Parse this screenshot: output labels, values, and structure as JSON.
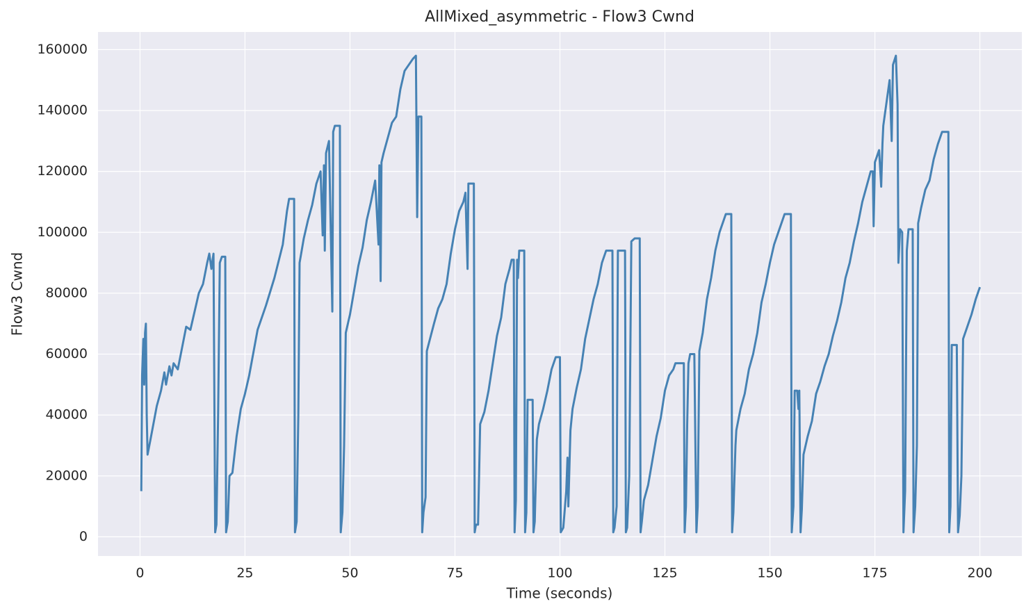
{
  "chart_data": {
    "type": "line",
    "title": "AllMixed_asymmetric - Flow3 Cwnd",
    "xlabel": "Time (seconds)",
    "ylabel": "Flow3 Cwnd",
    "color": "#4682b4",
    "grid": true,
    "xlim": [
      -10,
      210
    ],
    "xticks": [
      0,
      25,
      50,
      75,
      100,
      125,
      150,
      175,
      200
    ],
    "ylim": [
      -6300,
      165800
    ],
    "yticks": [
      0,
      20000,
      40000,
      60000,
      80000,
      100000,
      120000,
      140000,
      160000
    ],
    "x": [
      0.3,
      0.5,
      0.8,
      1.0,
      1.2,
      1.4,
      1.6,
      1.8,
      2.5,
      4,
      5,
      5.8,
      6.2,
      7,
      7.5,
      8,
      9,
      10,
      11,
      12,
      14,
      15,
      16,
      16.5,
      17,
      17.5,
      17.9,
      18.2,
      18.6,
      19,
      19.5,
      20.3,
      20.5,
      20.9,
      21.3,
      22,
      23,
      24,
      25,
      26,
      28,
      30,
      32,
      34,
      35,
      35.5,
      36.7,
      36.9,
      37.3,
      37.7,
      38,
      39,
      40,
      41,
      42,
      43,
      43.5,
      43.8,
      44,
      44.3,
      45,
      45.8,
      46,
      46.4,
      47.6,
      47.8,
      48.2,
      48.6,
      49,
      50,
      51,
      52,
      53,
      54,
      55,
      56,
      56.8,
      57,
      57.3,
      57.5,
      58,
      60,
      61,
      62,
      63,
      64,
      65,
      65.7,
      66,
      66.3,
      67,
      67.2,
      67.5,
      68,
      68.3,
      70,
      71,
      72,
      73,
      74,
      75,
      76,
      77,
      77.5,
      78,
      78.2,
      79.5,
      79.7,
      80,
      80.5,
      81,
      82,
      83,
      84,
      85,
      86,
      87,
      88,
      88.5,
      89,
      89.2,
      89.5,
      89.8,
      90,
      90.3,
      91.5,
      91.7,
      92,
      92.3,
      93.5,
      93.7,
      94,
      94.5,
      95,
      96,
      97,
      98,
      99,
      100,
      100.2,
      100.8,
      101.5,
      101.8,
      102,
      102.5,
      103,
      104,
      105,
      106,
      108,
      109,
      110,
      111,
      112.5,
      112.7,
      113,
      113.5,
      113.8,
      115.5,
      115.7,
      116,
      116.5,
      117,
      117.8,
      119,
      119.2,
      119.5,
      120,
      121,
      122,
      123,
      124,
      125,
      126,
      127,
      127.5,
      129.5,
      129.7,
      130,
      130.3,
      130.6,
      131,
      132,
      132.5,
      132.8,
      133.2,
      134,
      135,
      136,
      137,
      138,
      139,
      139.5,
      140.8,
      141,
      141.3,
      141.8,
      142,
      143,
      144,
      145,
      146,
      147,
      148,
      149,
      150,
      151,
      152,
      153,
      153.5,
      155,
      155.2,
      155.6,
      155.9,
      156.5,
      156.8,
      157,
      157.3,
      157.6,
      158,
      159,
      160,
      161,
      162,
      163,
      164,
      165,
      166,
      167,
      168,
      169,
      170,
      171,
      172,
      173,
      174,
      174.5,
      174.7,
      175,
      176,
      176.5,
      176.8,
      177,
      178,
      178.5,
      179,
      179.3,
      180,
      180.4,
      180.6,
      181,
      181.5,
      181.8,
      182.2,
      182.6,
      183,
      184,
      184.2,
      184.6,
      185,
      185.3,
      186,
      187,
      188,
      189,
      190,
      191,
      192.5,
      192.7,
      193,
      193.3,
      194.5,
      194.8,
      195.2,
      195.6,
      196,
      197,
      198,
      199,
      200
    ],
    "values": [
      15000,
      53000,
      65000,
      50000,
      67000,
      70000,
      40000,
      27000,
      32000,
      43000,
      48000,
      54000,
      50000,
      56000,
      53000,
      57000,
      55000,
      62000,
      69000,
      68000,
      80000,
      83000,
      90000,
      93000,
      88000,
      93000,
      1500,
      4000,
      40000,
      90000,
      92000,
      92000,
      1500,
      5000,
      20000,
      21000,
      33000,
      42000,
      47000,
      53000,
      68000,
      76000,
      85000,
      96000,
      107000,
      111000,
      111000,
      1500,
      5000,
      40000,
      90000,
      98000,
      104000,
      109000,
      116000,
      120000,
      99000,
      122000,
      94000,
      126000,
      130000,
      74000,
      133000,
      135000,
      135000,
      1500,
      8000,
      30000,
      67000,
      73000,
      81000,
      89000,
      95000,
      104000,
      110000,
      117000,
      96000,
      122000,
      84000,
      123000,
      126000,
      136000,
      138000,
      147000,
      153000,
      155000,
      157000,
      158000,
      105000,
      138000,
      138000,
      1500,
      8000,
      13000,
      61000,
      70000,
      75000,
      78000,
      83000,
      93000,
      101000,
      107000,
      110000,
      113000,
      88000,
      116000,
      116000,
      1500,
      4000,
      4000,
      37000,
      41000,
      48000,
      57000,
      66000,
      72000,
      83000,
      88000,
      91000,
      91000,
      1500,
      12000,
      91000,
      85000,
      94000,
      94000,
      1500,
      8000,
      45000,
      45000,
      1500,
      5000,
      32000,
      37000,
      42000,
      48000,
      55000,
      59000,
      59000,
      1500,
      3000,
      15000,
      26000,
      10000,
      35000,
      42000,
      49000,
      55000,
      65000,
      78000,
      83000,
      90000,
      94000,
      94000,
      1500,
      3000,
      10000,
      94000,
      94000,
      1500,
      3000,
      20000,
      97000,
      98000,
      98000,
      1500,
      5000,
      12000,
      17000,
      25000,
      33000,
      39000,
      48000,
      53000,
      55000,
      57000,
      57000,
      1500,
      10000,
      37000,
      57000,
      60000,
      60000,
      1500,
      10000,
      61000,
      67000,
      78000,
      85000,
      94000,
      100000,
      104000,
      106000,
      106000,
      1500,
      8000,
      30000,
      35000,
      42000,
      47000,
      55000,
      60000,
      67000,
      77000,
      83000,
      90000,
      96000,
      100000,
      104000,
      106000,
      106000,
      1500,
      10000,
      48000,
      48000,
      42000,
      48000,
      1500,
      9000,
      27000,
      33000,
      38000,
      47000,
      51000,
      56000,
      60000,
      66000,
      71000,
      77000,
      85000,
      90000,
      97000,
      103000,
      110000,
      115000,
      120000,
      120000,
      102000,
      123000,
      127000,
      115000,
      129000,
      135000,
      145000,
      150000,
      130000,
      155000,
      158000,
      142000,
      90000,
      101000,
      100000,
      1500,
      15000,
      94000,
      101000,
      101000,
      1500,
      10000,
      30000,
      103000,
      108000,
      114000,
      117000,
      124000,
      129000,
      133000,
      133000,
      1500,
      10000,
      63000,
      63000,
      1500,
      7000,
      20000,
      65000,
      69000,
      73000,
      78000,
      82000
    ]
  }
}
